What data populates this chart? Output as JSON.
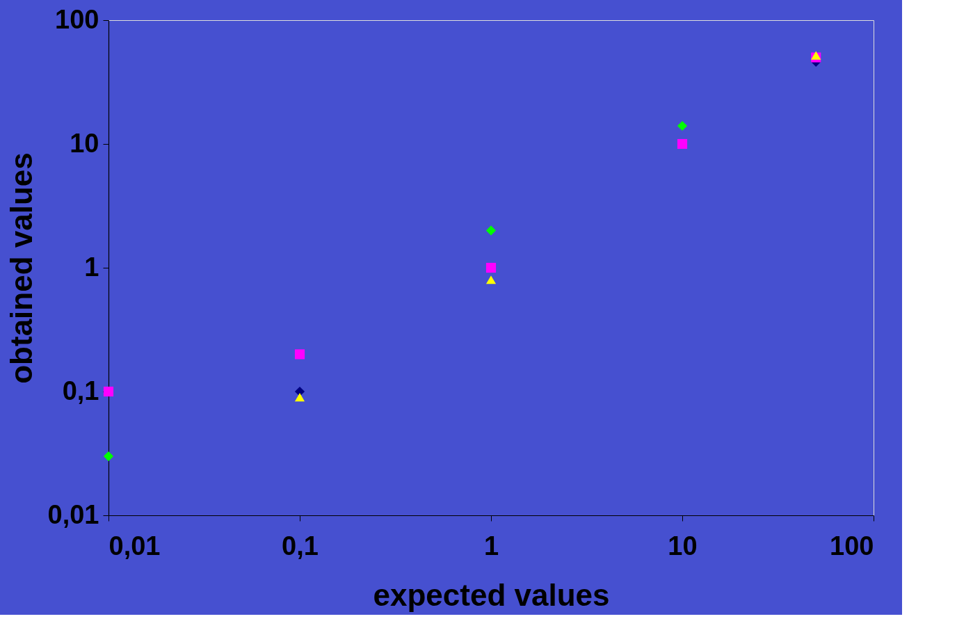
{
  "chart_data": {
    "type": "scatter",
    "xlabel": "expected values",
    "ylabel": "obtained values",
    "log": "xy",
    "grid": false,
    "legend": false,
    "x": [
      0.01,
      0.1,
      1,
      10,
      50
    ],
    "xlim": [
      0.01,
      100
    ],
    "ylim": [
      0.01,
      100
    ],
    "xticks": [
      {
        "value": 0.01,
        "label": "0,01"
      },
      {
        "value": 0.1,
        "label": "0,1"
      },
      1,
      10,
      100
    ],
    "yticks": [
      {
        "value": 0.01,
        "label": "0,01"
      },
      {
        "value": 0.1,
        "label": "0,1"
      },
      1,
      10,
      100
    ],
    "series": [
      {
        "color": "#000080",
        "marker": "diamond",
        "values": [
          null,
          0.1,
          null,
          null,
          46
        ]
      },
      {
        "color": "#00ff00",
        "marker": "diamond",
        "values": [
          0.03,
          null,
          2,
          14,
          null
        ]
      },
      {
        "color": "#ff00ff",
        "marker": "square",
        "values": [
          0.1,
          0.2,
          1,
          10,
          50
        ]
      },
      {
        "color": "#ffff00",
        "marker": "triangle",
        "values": [
          null,
          0.09,
          0.8,
          null,
          52
        ]
      }
    ]
  }
}
